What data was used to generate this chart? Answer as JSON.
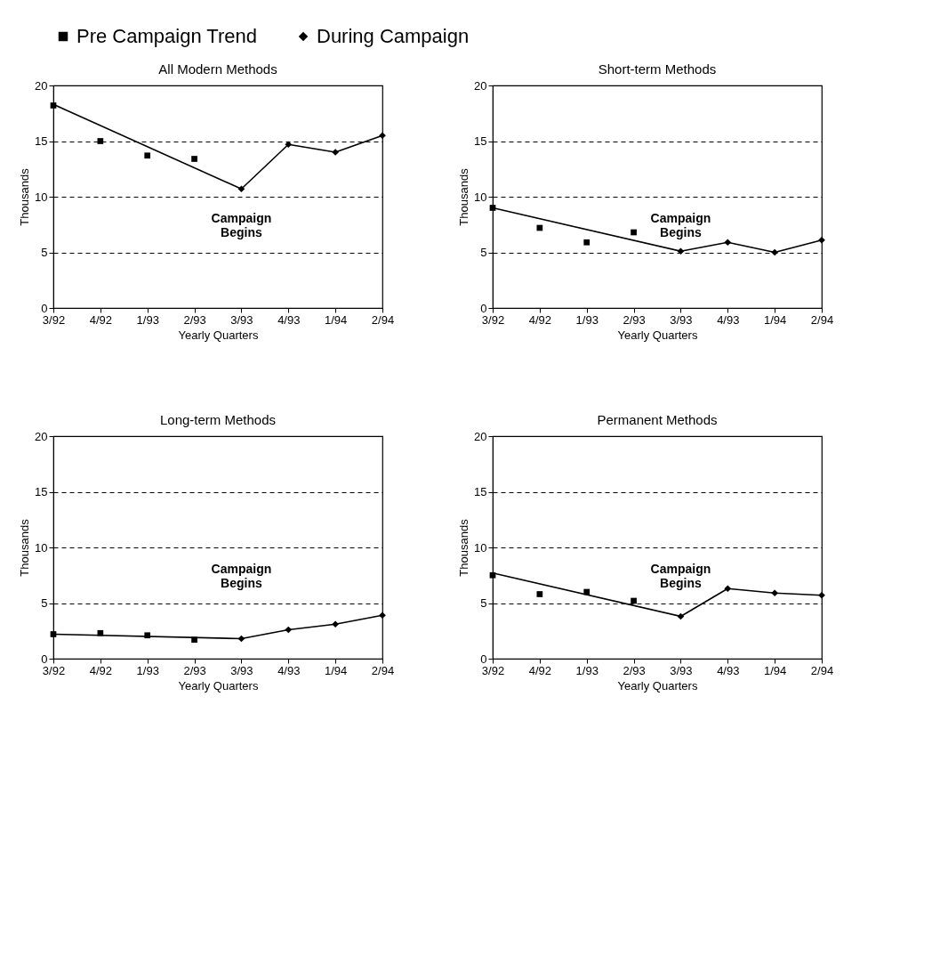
{
  "chart_data": [
    {
      "type": "line",
      "title": "All Modern Methods",
      "xlabel": "Yearly Quarters",
      "ylabel": "Thousands",
      "categories": [
        "3/92",
        "4/92",
        "1/93",
        "2/93",
        "3/93",
        "4/93",
        "1/94",
        "2/94"
      ],
      "ylim": [
        0,
        20
      ],
      "yticks": [
        0,
        5,
        10,
        15,
        20
      ],
      "grid": "y",
      "legend": "top",
      "series": [
        {
          "name": "Pre Campaign Trend",
          "type": "scatter",
          "marker": "square",
          "color": "#000000",
          "values": [
            18.2,
            15.0,
            13.7,
            13.4,
            null,
            null,
            null,
            null
          ]
        },
        {
          "marker": "none",
          "color": "#000000",
          "values": [
            18.3,
            null,
            null,
            null,
            10.7,
            null,
            null,
            null
          ]
        },
        {
          "name": "During Campaign",
          "marker": "diamond",
          "color": "#000000",
          "values": [
            null,
            null,
            null,
            null,
            10.7,
            14.7,
            14.0,
            15.5
          ]
        }
      ],
      "annotations": [
        "Campaign Begins"
      ]
    },
    {
      "type": "line",
      "title": "Short-term Methods",
      "xlabel": "Yearly Quarters",
      "ylabel": "Thousands",
      "categories": [
        "3/92",
        "4/92",
        "1/93",
        "2/93",
        "3/93",
        "4/93",
        "1/94",
        "2/94"
      ],
      "ylim": [
        0,
        20
      ],
      "yticks": [
        0,
        5,
        10,
        15,
        20
      ],
      "grid": "y",
      "series": [
        {
          "name": "Pre Campaign Trend",
          "type": "scatter",
          "marker": "square",
          "color": "#000000",
          "values": [
            9.0,
            7.2,
            5.9,
            6.8,
            null,
            null,
            null,
            null
          ]
        },
        {
          "marker": "none",
          "color": "#000000",
          "values": [
            9.0,
            null,
            null,
            null,
            5.1,
            null,
            null,
            null
          ]
        },
        {
          "name": "During Campaign",
          "marker": "diamond",
          "color": "#000000",
          "values": [
            null,
            null,
            null,
            null,
            5.1,
            5.9,
            5.0,
            6.1
          ]
        }
      ],
      "annotations": [
        "Campaign Begins"
      ]
    },
    {
      "type": "line",
      "title": "Long-term Methods",
      "xlabel": "Yearly Quarters",
      "ylabel": "Thousands",
      "categories": [
        "3/92",
        "4/92",
        "1/93",
        "2/93",
        "3/93",
        "4/93",
        "1/94",
        "2/94"
      ],
      "ylim": [
        0,
        20
      ],
      "yticks": [
        0,
        5,
        10,
        15,
        20
      ],
      "grid": "y",
      "series": [
        {
          "name": "Pre Campaign Trend",
          "type": "scatter",
          "marker": "square",
          "color": "#000000",
          "values": [
            2.2,
            2.3,
            2.1,
            1.7,
            null,
            null,
            null,
            null
          ]
        },
        {
          "marker": "none",
          "color": "#000000",
          "values": [
            2.2,
            null,
            null,
            null,
            1.8,
            null,
            null,
            null
          ]
        },
        {
          "name": "During Campaign",
          "marker": "diamond",
          "color": "#000000",
          "values": [
            null,
            null,
            null,
            null,
            1.8,
            2.6,
            3.1,
            3.9
          ]
        }
      ],
      "annotations": [
        "Campaign Begins"
      ]
    },
    {
      "type": "line",
      "title": "Permanent Methods",
      "xlabel": "Yearly Quarters",
      "ylabel": "Thousands",
      "categories": [
        "3/92",
        "4/92",
        "1/93",
        "2/93",
        "3/93",
        "4/93",
        "1/94",
        "2/94"
      ],
      "ylim": [
        0,
        20
      ],
      "yticks": [
        0,
        5,
        10,
        15,
        20
      ],
      "grid": "y",
      "series": [
        {
          "name": "Pre Campaign Trend",
          "type": "scatter",
          "marker": "square",
          "color": "#000000",
          "values": [
            7.5,
            5.8,
            6.0,
            5.2,
            null,
            null,
            null,
            null
          ]
        },
        {
          "marker": "none",
          "color": "#000000",
          "values": [
            7.7,
            null,
            null,
            null,
            3.8,
            null,
            null,
            null
          ]
        },
        {
          "name": "During Campaign",
          "marker": "diamond",
          "color": "#000000",
          "values": [
            null,
            null,
            null,
            null,
            3.8,
            6.3,
            5.9,
            5.7
          ]
        }
      ],
      "annotations": [
        "Campaign Begins"
      ]
    }
  ]
}
